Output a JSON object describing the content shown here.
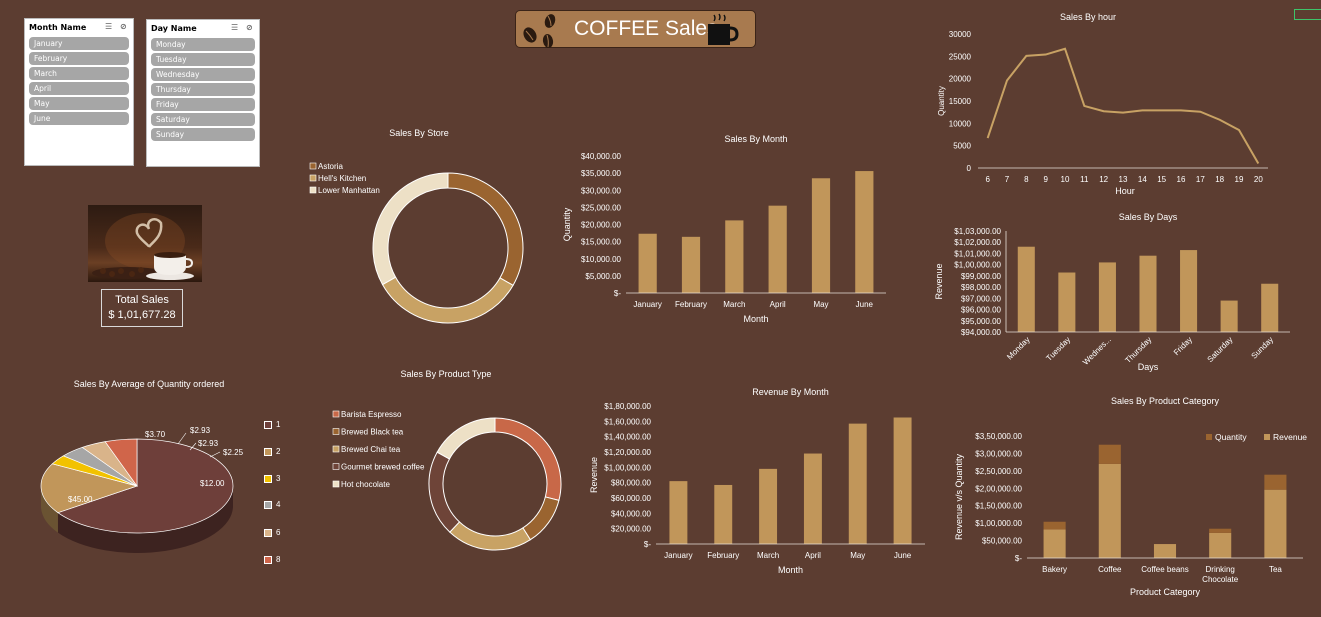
{
  "header": {
    "title": "COFFEE Sales"
  },
  "slicers": {
    "month": {
      "title": "Month Name",
      "items": [
        "January",
        "February",
        "March",
        "April",
        "May",
        "June"
      ]
    },
    "day": {
      "title": "Day Name",
      "items": [
        "Monday",
        "Tuesday",
        "Wednesday",
        "Thursday",
        "Friday",
        "Saturday",
        "Sunday"
      ]
    }
  },
  "total": {
    "label": "Total Sales",
    "value": "$ 1,01,677.28"
  },
  "colors": {
    "background": "#5c3d31",
    "bar": "#c1965a",
    "dark": "#9a6430",
    "cream": "#ede0c6"
  },
  "chart_data": [
    {
      "id": "store",
      "type": "pie",
      "variant": "doughnut",
      "title": "Sales By Store",
      "legend": [
        "Astoria",
        "Hell's Kitchen",
        "Lower Manhattan"
      ],
      "values": [
        33.3,
        33.6,
        33.1
      ],
      "colors": [
        "#9a6430",
        "#c8a264",
        "#ede0c6"
      ]
    },
    {
      "id": "month",
      "type": "bar",
      "title": "Sales By Month",
      "xlabel": "Month",
      "ylabel": "Quantity",
      "categories": [
        "January",
        "February",
        "March",
        "April",
        "May",
        "June"
      ],
      "values": [
        17300,
        16400,
        21200,
        25500,
        33500,
        35600
      ],
      "ylim": [
        0,
        40000
      ],
      "ticks": [
        "$-",
        "$5,000.00",
        "$10,000.00",
        "$15,000.00",
        "$20,000.00",
        "$25,000.00",
        "$30,000.00",
        "$35,000.00",
        "$40,000.00"
      ]
    },
    {
      "id": "hour",
      "type": "line",
      "title": "Sales By hour",
      "xlabel": "Hour",
      "ylabel": "Quantity",
      "x": [
        6,
        7,
        8,
        9,
        10,
        11,
        12,
        13,
        14,
        15,
        16,
        17,
        18,
        19,
        20
      ],
      "values": [
        6700,
        19600,
        25100,
        25400,
        26700,
        13900,
        12700,
        12400,
        12900,
        12900,
        12900,
        12600,
        10800,
        8500,
        1000
      ],
      "ylim": [
        0,
        30000
      ],
      "ticks": [
        "0",
        "5000",
        "10000",
        "15000",
        "20000",
        "25000",
        "30000"
      ]
    },
    {
      "id": "days",
      "type": "bar",
      "title": "Sales By Days",
      "xlabel": "Days",
      "ylabel": "Revenue",
      "categories": [
        "Monday",
        "Tuesday",
        "Wednes...",
        "Thursday",
        "Friday",
        "Saturday",
        "Sunday"
      ],
      "values": [
        101600,
        99300,
        100200,
        100800,
        101300,
        96800,
        98300
      ],
      "ylim": [
        94000,
        103000
      ],
      "ticks": [
        "$94,000.00",
        "$95,000.00",
        "$96,000.00",
        "$97,000.00",
        "$98,000.00",
        "$99,000.00",
        "$1,00,000.00",
        "$1,01,000.00",
        "$1,02,000.00",
        "$1,03,000.00"
      ]
    },
    {
      "id": "avgqty",
      "type": "pie",
      "variant": "3d",
      "title": "Sales By Average of Quantity ordered",
      "legend": [
        "1",
        "2",
        "3",
        "4",
        "6",
        "8"
      ],
      "values": [
        45.0,
        12.0,
        2.25,
        2.93,
        2.93,
        3.7
      ],
      "labels": [
        "$45.00",
        "$12.00",
        "$2.25",
        "$2.93",
        "$2.93",
        "$3.70"
      ],
      "colors": [
        "#6e3f3a",
        "#c1965a",
        "#f2c200",
        "#a6a6a6",
        "#d9b48a",
        "#d0654a"
      ]
    },
    {
      "id": "ptype",
      "type": "pie",
      "variant": "doughnut",
      "title": "Sales By Product Type",
      "legend": [
        "Barista Espresso",
        "Brewed Black tea",
        "Brewed Chai tea",
        "Gourmet brewed coffee",
        "Hot chocolate"
      ],
      "values": [
        29,
        12,
        21,
        21,
        17
      ],
      "colors": [
        "#c86848",
        "#9a6430",
        "#c8a264",
        "#6e4438",
        "#ede0c6"
      ]
    },
    {
      "id": "revmonth",
      "type": "bar",
      "title": "Revenue By Month",
      "xlabel": "Month",
      "ylabel": "Revenue",
      "categories": [
        "January",
        "February",
        "March",
        "April",
        "May",
        "June"
      ],
      "values": [
        82000,
        77000,
        98000,
        118000,
        157000,
        165000
      ],
      "ylim": [
        0,
        180000
      ],
      "ticks": [
        "$-",
        "$20,000.00",
        "$40,000.00",
        "$60,000.00",
        "$80,000.00",
        "$1,00,000.00",
        "$1,20,000.00",
        "$1,40,000.00",
        "$1,60,000.00",
        "$1,80,000.00"
      ]
    },
    {
      "id": "category",
      "type": "bar",
      "variant": "stacked",
      "title": "Sales By Product Category",
      "xlabel": "Product Category",
      "ylabel": "Revenue v/s Quantity",
      "categories": [
        "Bakery",
        "Coffee",
        "Coffee beans",
        "Drinking Chocolate",
        "Tea"
      ],
      "series": [
        {
          "name": "Revenue",
          "values": [
            82000,
            270000,
            40000,
            72000,
            196000
          ],
          "color": "#c1965a"
        },
        {
          "name": "Quantity",
          "values": [
            22000,
            55000,
            0,
            12000,
            43000
          ],
          "color": "#9a6430"
        }
      ],
      "legend_order": [
        "Quantity",
        "Revenue"
      ],
      "ylim": [
        0,
        350000
      ],
      "ticks": [
        "$-",
        "$50,000.00",
        "$1,00,000.00",
        "$1,50,000.00",
        "$2,00,000.00",
        "$2,50,000.00",
        "$3,00,000.00",
        "$3,50,000.00"
      ]
    }
  ]
}
